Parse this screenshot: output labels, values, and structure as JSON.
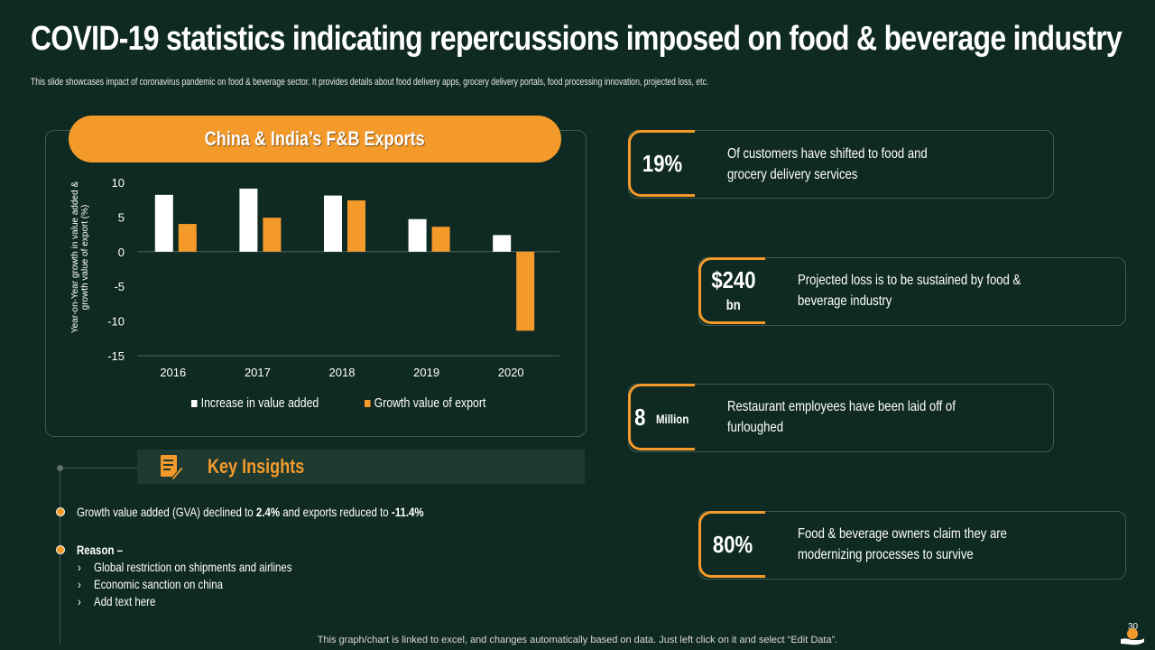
{
  "header": {
    "title": "COVID-19 statistics indicating repercussions imposed on food & beverage industry",
    "subtitle": "This slide showcases impact of coronavirus pandemic on food & beverage sector. It provides details about food delivery apps, grocery delivery portals, food processing innovation, projected loss, etc."
  },
  "chart_panel": {
    "heading": "China & India’s F&B Exports"
  },
  "chart_data": {
    "type": "bar",
    "title": "China & India’s F&B Exports",
    "categories": [
      "2016",
      "2017",
      "2018",
      "2019",
      "2020"
    ],
    "series": [
      {
        "name": "Increase in value added",
        "values": [
          8.2,
          9.1,
          8.1,
          4.7,
          2.4
        ],
        "color": "#ffffff"
      },
      {
        "name": "Growth value of export",
        "values": [
          4.0,
          4.9,
          7.4,
          3.6,
          -11.4
        ],
        "color": "#f39a2b"
      }
    ],
    "ylabel": "Year-on-Year growth in value added & growth value of export (%)",
    "xlabel": "",
    "ylim": [
      -15,
      10
    ],
    "yticks": [
      10,
      5,
      0,
      -5,
      -10,
      -15
    ],
    "legend": "bottom"
  },
  "insights": {
    "title": "Key Insights",
    "line1_pre": "Growth value added (GVA) declined to ",
    "line1_b1": "2.4%",
    "line1_mid": " and exports reduced to ",
    "line1_b2": "-11.4%",
    "reason_label": "Reason –",
    "reasons": [
      "Global restriction on shipments and airlines",
      "Economic sanction on china",
      "Add text here"
    ],
    "chevron": "›"
  },
  "stats": [
    {
      "value": "19%",
      "unit": "",
      "text": "Of customers have shifted to food and grocery delivery services"
    },
    {
      "value": "$240",
      "unit": "bn",
      "text": "Projected loss is to be sustained by food & beverage industry"
    },
    {
      "value": "8",
      "unit": "Million",
      "text": "Restaurant employees have been laid off of furloughed"
    },
    {
      "value": "80%",
      "unit": "",
      "text": "Food & beverage owners claim they are modernizing processes to survive"
    }
  ],
  "footer": {
    "note": "This graph/chart is linked to excel, and changes automatically based on data. Just left click on it and select “Edit Data”.",
    "page_number": "30"
  },
  "colors": {
    "background": "#0f2a22",
    "accent": "#f39a2b",
    "panel_border": "#3f5a50",
    "white": "#ffffff"
  }
}
